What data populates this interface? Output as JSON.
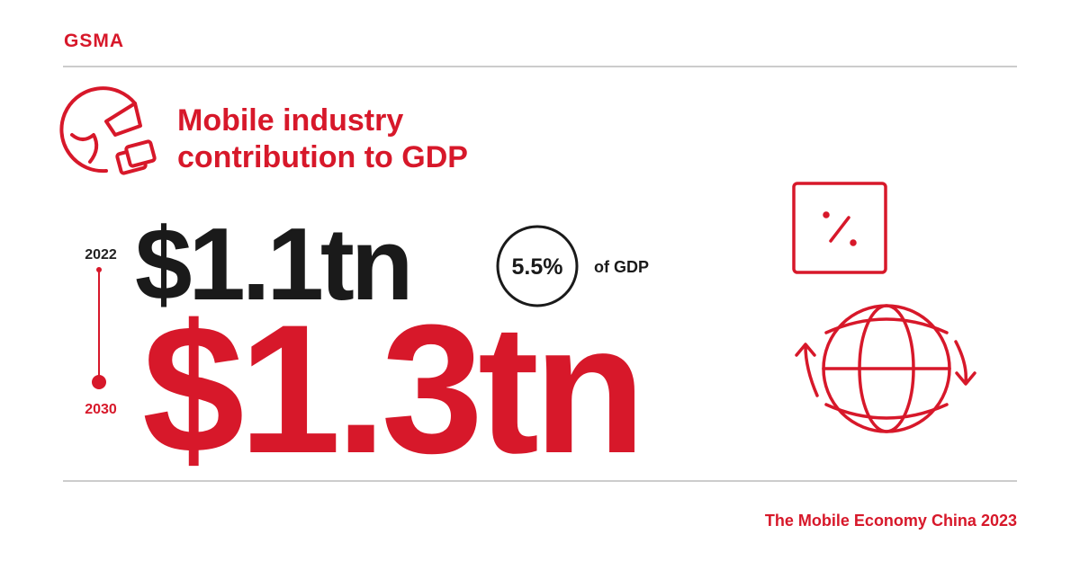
{
  "logo": "GSMA",
  "title": {
    "line1": "Mobile industry",
    "line2": "contribution to GDP"
  },
  "timeline": {
    "start_year": "2022",
    "end_year": "2030"
  },
  "figures": {
    "value_2022": "$1.1tn",
    "value_2030": "$1.3tn",
    "share": "5.5%",
    "share_label": "of GDP"
  },
  "footer": "The Mobile Economy China 2023"
}
